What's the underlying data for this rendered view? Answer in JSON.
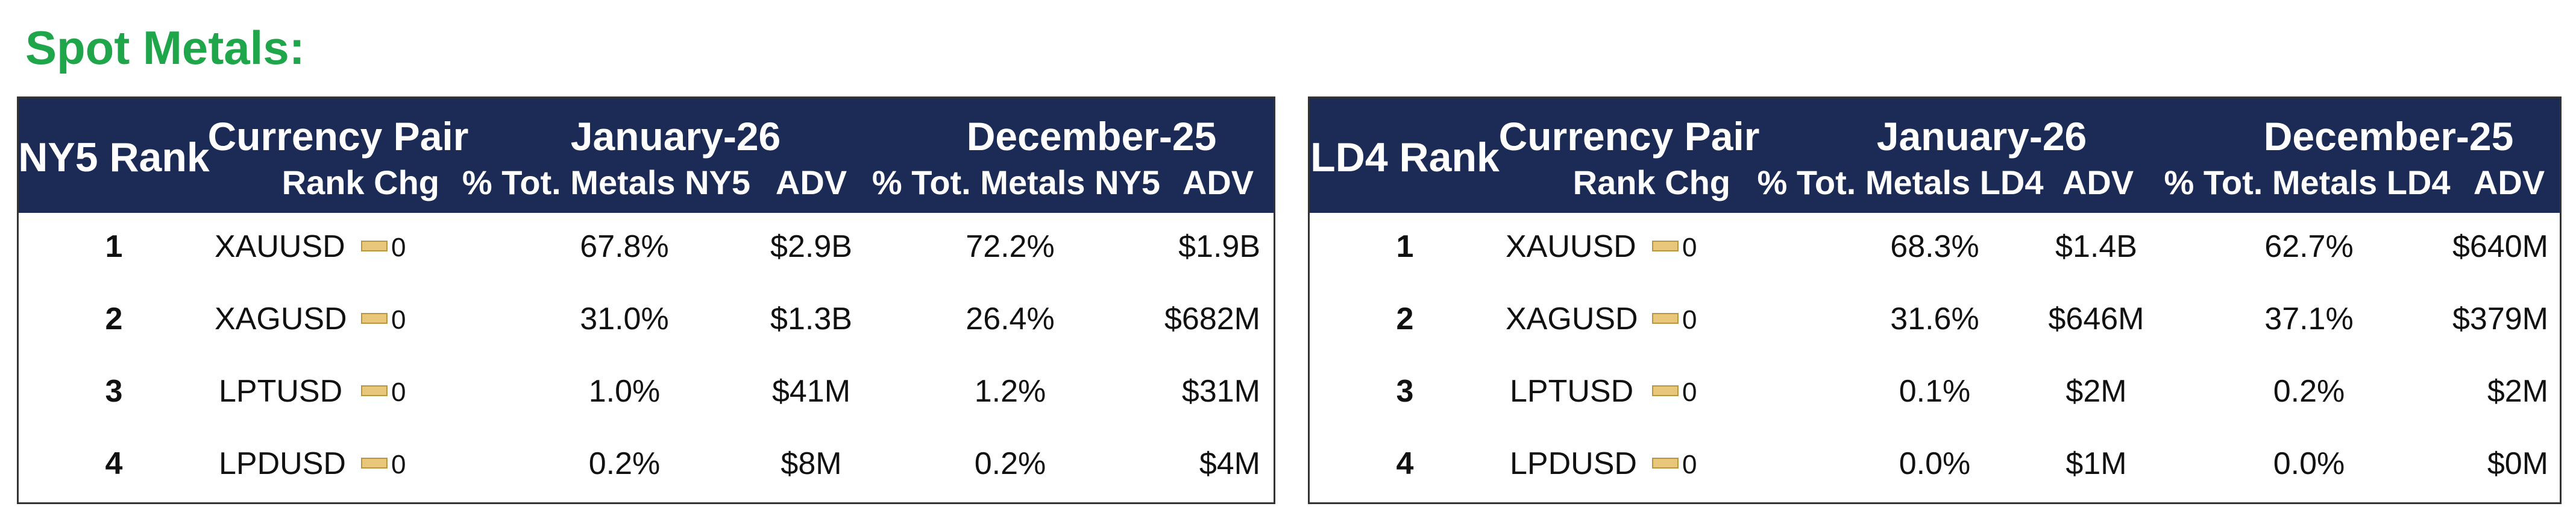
{
  "title": "Spot Metals:",
  "panels": [
    {
      "rank_label": "NY5 Rank",
      "pair_label": "Currency Pair",
      "rank_chg_label": "Rank Chg",
      "month1": "January-26",
      "month2": "December-25",
      "pct_label": "% Tot. Metals NY5",
      "adv_label": "ADV",
      "rows": [
        {
          "rank": "1",
          "pair": "XAUUSD",
          "chg": "0",
          "pct1": "67.8%",
          "adv1": "$2.9B",
          "pct2": "72.2%",
          "adv2": "$1.9B"
        },
        {
          "rank": "2",
          "pair": "XAGUSD",
          "chg": "0",
          "pct1": "31.0%",
          "adv1": "$1.3B",
          "pct2": "26.4%",
          "adv2": "$682M"
        },
        {
          "rank": "3",
          "pair": "LPTUSD",
          "chg": "0",
          "pct1": "1.0%",
          "adv1": "$41M",
          "pct2": "1.2%",
          "adv2": "$31M"
        },
        {
          "rank": "4",
          "pair": "LPDUSD",
          "chg": "0",
          "pct1": "0.2%",
          "adv1": "$8M",
          "pct2": "0.2%",
          "adv2": "$4M"
        }
      ]
    },
    {
      "rank_label": "LD4 Rank",
      "pair_label": "Currency Pair",
      "rank_chg_label": "Rank Chg",
      "month1": "January-26",
      "month2": "December-25",
      "pct_label": "% Tot. Metals LD4",
      "adv_label": "ADV",
      "rows": [
        {
          "rank": "1",
          "pair": "XAUUSD",
          "chg": "0",
          "pct1": "68.3%",
          "adv1": "$1.4B",
          "pct2": "62.7%",
          "adv2": "$640M"
        },
        {
          "rank": "2",
          "pair": "XAGUSD",
          "chg": "0",
          "pct1": "31.6%",
          "adv1": "$646M",
          "pct2": "37.1%",
          "adv2": "$379M"
        },
        {
          "rank": "3",
          "pair": "LPTUSD",
          "chg": "0",
          "pct1": "0.1%",
          "adv1": "$2M",
          "pct2": "0.2%",
          "adv2": "$2M"
        },
        {
          "rank": "4",
          "pair": "LPDUSD",
          "chg": "0",
          "pct1": "0.0%",
          "adv1": "$1M",
          "pct2": "0.0%",
          "adv2": "$0M"
        }
      ]
    }
  ]
}
